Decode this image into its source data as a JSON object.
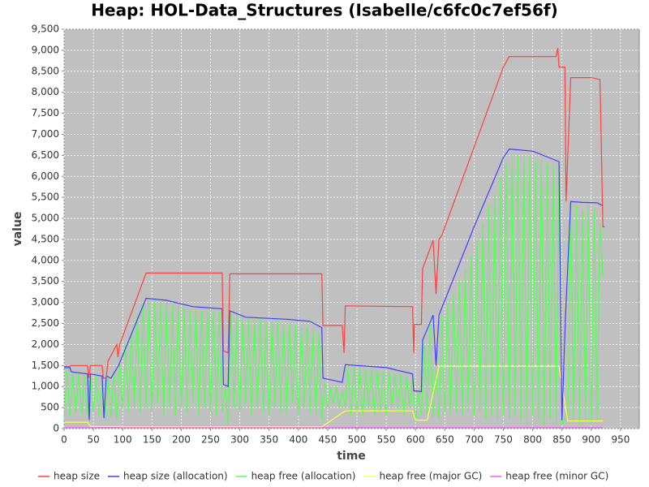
{
  "chart_data": {
    "type": "line",
    "title": "Heap: HOL-Data_Structures (Isabelle/c6fc0c7ef56f)",
    "x_label": "time",
    "y_label": "value",
    "xlim": [
      0,
      982
    ],
    "ylim": [
      0,
      9500
    ],
    "xticks": [
      0,
      50,
      100,
      150,
      200,
      250,
      300,
      350,
      400,
      450,
      500,
      550,
      600,
      650,
      700,
      750,
      800,
      850,
      900,
      950
    ],
    "yticks": [
      0,
      500,
      {
        "value": 1000,
        "label": "1,000"
      },
      {
        "value": 1500,
        "label": "1,500"
      },
      {
        "value": 2000,
        "label": "2,000"
      },
      {
        "value": 2500,
        "label": "2,500"
      },
      {
        "value": 3000,
        "label": "3,000"
      },
      {
        "value": 3500,
        "label": "3,500"
      },
      {
        "value": 4000,
        "label": "4,000"
      },
      {
        "value": 4500,
        "label": "4,500"
      },
      {
        "value": 5000,
        "label": "5,000"
      },
      {
        "value": 5500,
        "label": "5,500"
      },
      {
        "value": 6000,
        "label": "6,000"
      },
      {
        "value": 6500,
        "label": "6,500"
      },
      {
        "value": 7000,
        "label": "7,000"
      },
      {
        "value": 7500,
        "label": "7,500"
      },
      {
        "value": 8000,
        "label": "8,000"
      },
      {
        "value": 8500,
        "label": "8,500"
      },
      {
        "value": 9000,
        "label": "9,000"
      },
      {
        "value": 9500,
        "label": "9,500"
      }
    ],
    "grid": true,
    "series": [
      {
        "name": "heap free (allocation)",
        "color": "#55ff55",
        "x": [
          0,
          5,
          10,
          15,
          20,
          25,
          30,
          35,
          40,
          45,
          50,
          55,
          60,
          65,
          70,
          75,
          80,
          85,
          90,
          95,
          100,
          105,
          110,
          115,
          120,
          125,
          130,
          135,
          140,
          145,
          150,
          155,
          160,
          165,
          170,
          175,
          180,
          185,
          190,
          195,
          200,
          205,
          210,
          215,
          220,
          225,
          230,
          235,
          240,
          245,
          250,
          255,
          260,
          265,
          270,
          275,
          280,
          285,
          290,
          295,
          300,
          305,
          310,
          315,
          320,
          325,
          330,
          335,
          340,
          345,
          350,
          355,
          360,
          365,
          370,
          375,
          380,
          385,
          390,
          395,
          400,
          405,
          410,
          415,
          420,
          425,
          430,
          435,
          440,
          445,
          450,
          455,
          460,
          465,
          470,
          475,
          480,
          485,
          490,
          495,
          500,
          505,
          510,
          515,
          520,
          525,
          530,
          535,
          540,
          545,
          550,
          555,
          560,
          565,
          570,
          575,
          580,
          585,
          590,
          595,
          600,
          605,
          610,
          615,
          620,
          625,
          630,
          635,
          640,
          645,
          650,
          655,
          660,
          665,
          670,
          675,
          680,
          685,
          690,
          695,
          700,
          705,
          710,
          715,
          720,
          725,
          730,
          735,
          740,
          745,
          750,
          755,
          760,
          765,
          770,
          775,
          780,
          785,
          790,
          795,
          800,
          805,
          810,
          815,
          820,
          825,
          830,
          835,
          840,
          845,
          850,
          855,
          860,
          865,
          870,
          875,
          880,
          885,
          890,
          895,
          900,
          905,
          910,
          915,
          920
        ],
        "values": [
          200,
          1400,
          300,
          1350,
          400,
          1300,
          350,
          1300,
          300,
          1250,
          400,
          1250,
          300,
          1200,
          200,
          1200,
          300,
          1300,
          200,
          1600,
          500,
          2000,
          400,
          2300,
          500,
          2700,
          400,
          3000,
          500,
          3050,
          400,
          3050,
          600,
          3000,
          300,
          3000,
          500,
          2950,
          300,
          2900,
          500,
          2900,
          400,
          2850,
          600,
          2850,
          300,
          2800,
          500,
          2800,
          400,
          2800,
          300,
          2800,
          400,
          1000,
          100,
          2750,
          500,
          2700,
          400,
          2650,
          600,
          2600,
          300,
          2600,
          500,
          2600,
          400,
          2550,
          300,
          2550,
          500,
          2550,
          400,
          2500,
          300,
          2500,
          600,
          2500,
          300,
          2400,
          500,
          2400,
          400,
          2350,
          300,
          2300,
          200,
          1100,
          500,
          1000,
          600,
          1000,
          500,
          900,
          500,
          1500,
          300,
          1450,
          400,
          1450,
          300,
          1400,
          500,
          1400,
          300,
          1400,
          400,
          1350,
          300,
          1350,
          500,
          1300,
          400,
          1300,
          300,
          1250,
          500,
          1200,
          200,
          850,
          300,
          2000,
          400,
          2500,
          300,
          1400,
          200,
          2700,
          400,
          3000,
          300,
          3200,
          400,
          3500,
          300,
          3800,
          400,
          4100,
          300,
          4500,
          400,
          4900,
          200,
          5300,
          300,
          5600,
          200,
          6000,
          300,
          6300,
          200,
          6500,
          300,
          6500,
          200,
          6500,
          100,
          6500,
          300,
          6400,
          200,
          6400,
          100,
          6300,
          200,
          6300,
          100,
          6200,
          100,
          200,
          300,
          5300,
          200,
          5300,
          100,
          5200,
          200,
          5300,
          100,
          5200,
          200,
          4900,
          3600
        ]
      },
      {
        "name": "heap free (major GC)",
        "color": "#ffff44",
        "x": [
          0,
          40,
          45,
          95,
          100,
          440,
          480,
          595,
          600,
          620,
          640,
          845,
          860,
          920
        ],
        "values": [
          150,
          150,
          50,
          50,
          40,
          40,
          420,
          420,
          200,
          200,
          1480,
          1480,
          180,
          180
        ]
      },
      {
        "name": "heap free (minor GC)",
        "color": "#ff55ff",
        "x": [
          0,
          100,
          300,
          500,
          700,
          920
        ],
        "values": [
          20,
          20,
          20,
          20,
          20,
          20
        ]
      },
      {
        "name": "heap size (allocation)",
        "color": "#4040ff",
        "x": [
          0,
          10,
          12,
          40,
          43,
          45,
          65,
          68,
          72,
          80,
          93,
          140,
          175,
          220,
          270,
          272,
          280,
          283,
          310,
          380,
          420,
          440,
          442,
          475,
          480,
          550,
          595,
          597,
          610,
          612,
          630,
          635,
          640,
          700,
          750,
          760,
          800,
          845,
          850,
          856,
          865,
          885,
          910,
          920
        ],
        "values": [
          1450,
          1450,
          1350,
          1300,
          200,
          1300,
          1250,
          250,
          1250,
          1200,
          1500,
          3100,
          3050,
          2900,
          2850,
          1050,
          1000,
          2800,
          2650,
          2600,
          2550,
          2400,
          1200,
          1100,
          1520,
          1450,
          1300,
          900,
          880,
          2100,
          2700,
          1500,
          2700,
          4800,
          6450,
          6650,
          6600,
          6350,
          200,
          2650,
          5400,
          5380,
          5370,
          5300
        ]
      },
      {
        "name": "heap size",
        "color": "#ff4040",
        "x": [
          0,
          10,
          12,
          40,
          42,
          45,
          65,
          67,
          72,
          75,
          90,
          92,
          95,
          140,
          270,
          272,
          280,
          283,
          310,
          440,
          442,
          475,
          478,
          480,
          595,
          597,
          598,
          610,
          612,
          630,
          635,
          640,
          645,
          750,
          760,
          840,
          843,
          845,
          855,
          857,
          865,
          880,
          900,
          915,
          920,
          923
        ],
        "values": [
          1480,
          1480,
          1500,
          1500,
          1200,
          1500,
          1500,
          1200,
          1200,
          1600,
          2000,
          1700,
          2000,
          3700,
          3700,
          1850,
          1800,
          3680,
          3680,
          3680,
          2450,
          2450,
          1800,
          2920,
          2900,
          1800,
          2480,
          2480,
          3800,
          4480,
          3200,
          4500,
          4600,
          8600,
          8850,
          8850,
          9050,
          8600,
          8600,
          5400,
          8350,
          8350,
          8350,
          8300,
          4800,
          4800
        ]
      }
    ],
    "legend_order": [
      "heap size",
      "heap size (allocation)",
      "heap free (allocation)",
      "heap free (major GC)",
      "heap free (minor GC)"
    ]
  }
}
